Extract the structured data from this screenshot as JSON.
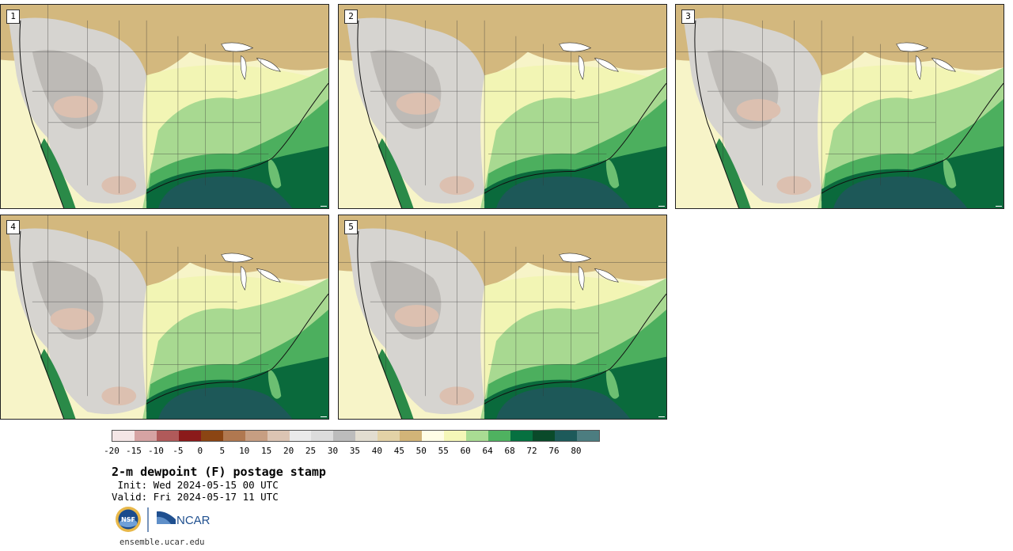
{
  "product": {
    "title": "2-m dewpoint (F) postage stamp",
    "init": " Init: Wed 2024-05-15 00 UTC",
    "valid": "Valid: Fri 2024-05-17 11 UTC"
  },
  "panels": [
    {
      "label": "1"
    },
    {
      "label": "2"
    },
    {
      "label": "3"
    },
    {
      "label": "4"
    },
    {
      "label": "5"
    }
  ],
  "colorbar": {
    "colors": [
      "#f4e6e6",
      "#d6a3a3",
      "#b05a5a",
      "#8b1a1a",
      "#8b4513",
      "#b07850",
      "#c79e82",
      "#dcc4b3",
      "#eaeaea",
      "#dcdcdc",
      "#bcbcbc",
      "#e2ddd0",
      "#e3d2a6",
      "#d2b478",
      "#fffde6",
      "#f5f7b8",
      "#a9dc93",
      "#4fb260",
      "#067040",
      "#0a4a2a",
      "#1d5a5a",
      "#4c7d80"
    ],
    "labels": [
      "-20",
      "-15",
      "-10",
      "-5",
      "0",
      "5",
      "10",
      "15",
      "20",
      "25",
      "30",
      "35",
      "40",
      "45",
      "50",
      "55",
      "60",
      "64",
      "68",
      "72",
      "76",
      "80"
    ]
  },
  "logos": {
    "nsf": "NSF",
    "ncar": "NCAR"
  },
  "footer": {
    "site": "ensemble.ucar.edu"
  }
}
